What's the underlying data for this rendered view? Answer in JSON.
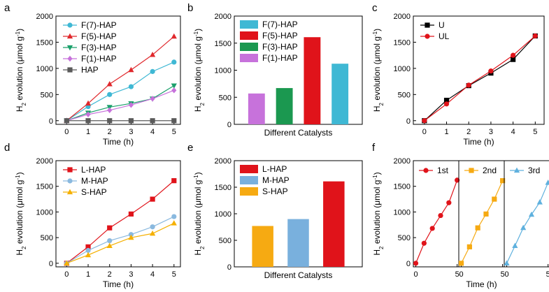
{
  "chart_data": [
    {
      "panel": "a",
      "type": "line",
      "x": [
        0,
        1,
        2,
        3,
        4,
        5
      ],
      "series": [
        {
          "name": "F(7)-HAP",
          "color": "#3fb8d4",
          "marker": "circle",
          "values": [
            0,
            270,
            500,
            650,
            940,
            1120
          ]
        },
        {
          "name": "F(5)-HAP",
          "color": "#e0282c",
          "marker": "triangle-up",
          "values": [
            0,
            330,
            700,
            970,
            1260,
            1610
          ]
        },
        {
          "name": "F(3)-HAP",
          "color": "#1aa06b",
          "marker": "triangle-down",
          "values": [
            0,
            150,
            260,
            330,
            420,
            670
          ]
        },
        {
          "name": "F(1)-HAP",
          "color": "#c772db",
          "marker": "diamond",
          "values": [
            0,
            120,
            200,
            300,
            420,
            580
          ]
        },
        {
          "name": "HAP",
          "color": "#5a5a5a",
          "marker": "square",
          "values": [
            0,
            0,
            0,
            0,
            0,
            0
          ]
        }
      ],
      "xlabel": "Time (h)",
      "ylabel": "H2 evolution (μmol g-1)",
      "xlim": [
        -0.5,
        5.3
      ],
      "ylim": [
        -70,
        2000
      ],
      "xticks": [
        0,
        1,
        2,
        3,
        4,
        5
      ],
      "yticks": [
        0,
        500,
        1000,
        1500,
        2000
      ],
      "legend": "top-left"
    },
    {
      "panel": "b",
      "type": "bar",
      "categories": [
        "F(1)-HAP",
        "F(3)-HAP",
        "F(5)-HAP",
        "F(7)-HAP"
      ],
      "colors": [
        "#c772db",
        "#1b9850",
        "#e0131a",
        "#3fb8d4"
      ],
      "values": [
        570,
        670,
        1610,
        1120
      ],
      "legend_entries": [
        "F(7)-HAP",
        "F(5)-HAP",
        "F(3)-HAP",
        "F(1)-HAP"
      ],
      "legend_colors": [
        "#3fb8d4",
        "#e0131a",
        "#1b9850",
        "#c772db"
      ],
      "xlabel": "Different Catalysts",
      "ylabel": "H2 evolution (μmol g-1)",
      "ylim": [
        0,
        2000
      ],
      "yticks": [
        0,
        500,
        1000,
        1500,
        2000
      ],
      "legend": "top-left"
    },
    {
      "panel": "c",
      "type": "line",
      "x": [
        0,
        1,
        2,
        3,
        4,
        5
      ],
      "series": [
        {
          "name": "U",
          "color": "#000000",
          "marker": "square",
          "values": [
            0,
            390,
            670,
            910,
            1170,
            1620
          ]
        },
        {
          "name": "UL",
          "color": "#e0131a",
          "marker": "circle",
          "values": [
            0,
            320,
            680,
            950,
            1250,
            1620
          ]
        }
      ],
      "xlabel": "Time (h)",
      "ylabel": "H2 evolution (μmol g-1)",
      "xlim": [
        -0.5,
        5.4
      ],
      "ylim": [
        -70,
        2000
      ],
      "xticks": [
        0,
        1,
        2,
        3,
        4,
        5
      ],
      "yticks": [
        0,
        500,
        1000,
        1500,
        2000
      ],
      "legend": "top-left"
    },
    {
      "panel": "d",
      "type": "line",
      "x": [
        0,
        1,
        2,
        3,
        4,
        5
      ],
      "series": [
        {
          "name": "L-HAP",
          "color": "#e0131a",
          "marker": "square",
          "values": [
            0,
            320,
            690,
            960,
            1250,
            1610
          ]
        },
        {
          "name": "M-HAP",
          "color": "#8ab9df",
          "marker": "circle",
          "values": [
            0,
            250,
            440,
            560,
            710,
            910
          ]
        },
        {
          "name": "S-HAP",
          "color": "#f5b000",
          "marker": "triangle-up",
          "values": [
            0,
            160,
            340,
            500,
            580,
            780
          ]
        }
      ],
      "xlabel": "Time (h)",
      "ylabel": "H2 evolution (μmol g-1)",
      "xlim": [
        -0.5,
        5.3
      ],
      "ylim": [
        -70,
        2000
      ],
      "xticks": [
        0,
        1,
        2,
        3,
        4,
        5
      ],
      "yticks": [
        0,
        500,
        1000,
        1500,
        2000
      ],
      "legend": "top-left"
    },
    {
      "panel": "e",
      "type": "bar",
      "categories": [
        "S-HAP",
        "M-HAP",
        "L-HAP"
      ],
      "colors": [
        "#f6aa12",
        "#79b0dd",
        "#e0131a"
      ],
      "values": [
        770,
        900,
        1610
      ],
      "legend_entries": [
        "L-HAP",
        "M-HAP",
        "S-HAP"
      ],
      "legend_colors": [
        "#e0131a",
        "#79b0dd",
        "#f6aa12"
      ],
      "xlabel": "Different Catalysts",
      "ylabel": "H2 evolution (μmol g-1)",
      "ylim": [
        0,
        2000
      ],
      "yticks": [
        0,
        500,
        1000,
        1500,
        2000
      ],
      "legend": "top-left"
    },
    {
      "panel": "f",
      "type": "line",
      "x": [
        0,
        1,
        2,
        3,
        4,
        5
      ],
      "runs": [
        {
          "name": "1st",
          "color": "#e0131a",
          "marker": "circle",
          "values": [
            0,
            390,
            680,
            930,
            1180,
            1620
          ]
        },
        {
          "name": "2nd",
          "color": "#f6aa12",
          "marker": "square",
          "values": [
            0,
            320,
            690,
            960,
            1250,
            1610
          ]
        },
        {
          "name": "3rd",
          "color": "#5fb1de",
          "marker": "triangle-up",
          "values": [
            0,
            340,
            690,
            950,
            1190,
            1570
          ]
        }
      ],
      "xlabel": "Time (h)",
      "ylabel": "H2 evolution (μmol g-1)",
      "xlim": [
        -0.3,
        5.2
      ],
      "ylim": [
        -70,
        2000
      ],
      "xticks": [
        0,
        5
      ],
      "yticks": [
        0,
        500,
        1000,
        1500,
        2000
      ],
      "legend": "top"
    }
  ]
}
